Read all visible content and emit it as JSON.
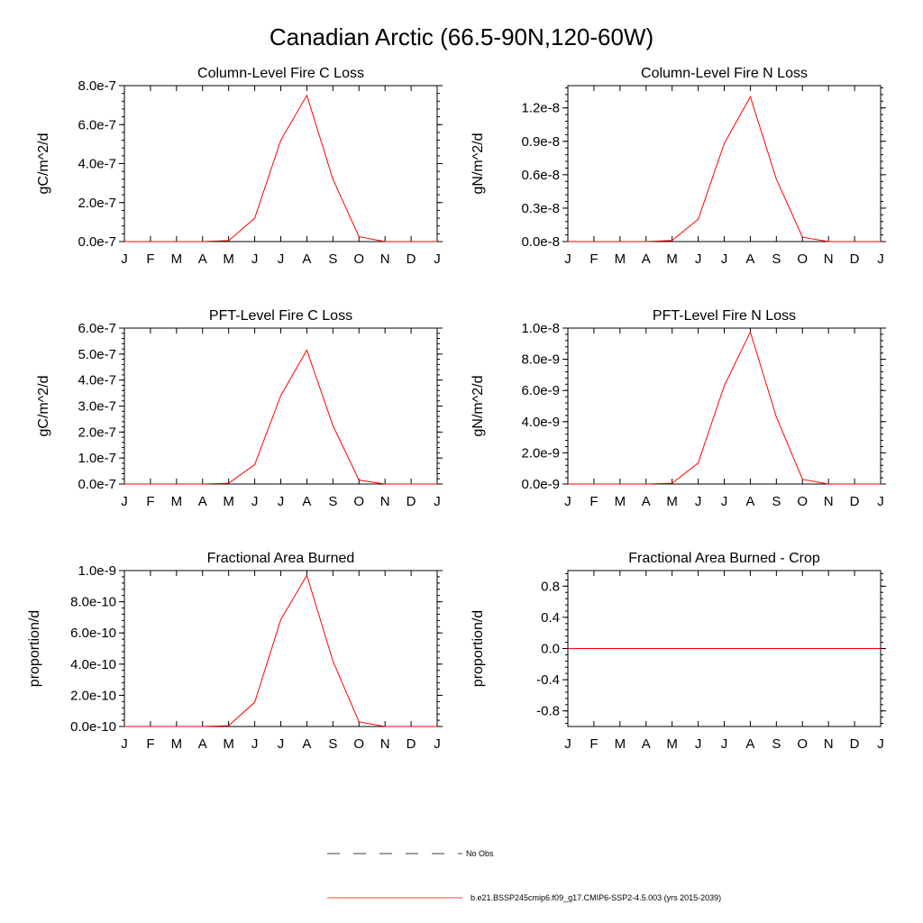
{
  "figure": {
    "title": "Canadian Arctic (66.5-90N,120-60W)"
  },
  "colors": {
    "model_line": "#ff0000",
    "obs_line": "#000000",
    "axis": "#000000"
  },
  "chart_data": [
    {
      "type": "line",
      "title": "Column-Level Fire C Loss",
      "ylabel": "gC/m^2/d",
      "categories": [
        "J",
        "F",
        "M",
        "A",
        "M",
        "J",
        "J",
        "A",
        "S",
        "O",
        "N",
        "D",
        "J"
      ],
      "ylim": [
        0,
        8e-07
      ],
      "yticks": [
        0,
        2e-07,
        4e-07,
        6e-07,
        8e-07
      ],
      "ytick_labels": [
        "0.0e-7",
        "2.0e-7",
        "4.0e-7",
        "6.0e-7",
        "8.0e-7"
      ],
      "series": [
        {
          "values": [
            0,
            0,
            0,
            0,
            5e-09,
            1.2e-07,
            5.2e-07,
            7.5e-07,
            3.2e-07,
            2.5e-08,
            0,
            0,
            0
          ]
        }
      ]
    },
    {
      "type": "line",
      "title": "Column-Level Fire N Loss",
      "ylabel": "gN/m^2/d",
      "categories": [
        "J",
        "F",
        "M",
        "A",
        "M",
        "J",
        "J",
        "A",
        "S",
        "O",
        "N",
        "D",
        "J"
      ],
      "ylim": [
        0,
        1.4e-08
      ],
      "yticks": [
        0,
        3e-09,
        6e-09,
        9e-09,
        1.2e-08
      ],
      "ytick_labels": [
        "0.0e-8",
        "0.3e-8",
        "0.6e-8",
        "0.9e-8",
        "1.2e-8"
      ],
      "series": [
        {
          "values": [
            0,
            0,
            0,
            0,
            1e-10,
            2e-09,
            8.8e-09,
            1.3e-08,
            5.6e-09,
            4e-10,
            0,
            0,
            0
          ]
        }
      ]
    },
    {
      "type": "line",
      "title": "PFT-Level Fire C Loss",
      "ylabel": "gC/m^2/d",
      "categories": [
        "J",
        "F",
        "M",
        "A",
        "M",
        "J",
        "J",
        "A",
        "S",
        "O",
        "N",
        "D",
        "J"
      ],
      "ylim": [
        0,
        6e-07
      ],
      "yticks": [
        0,
        1e-07,
        2e-07,
        3e-07,
        4e-07,
        5e-07,
        6e-07
      ],
      "ytick_labels": [
        "0.0e-7",
        "1.0e-7",
        "2.0e-7",
        "3.0e-7",
        "4.0e-7",
        "5.0e-7",
        "6.0e-7"
      ],
      "series": [
        {
          "values": [
            0,
            0,
            0,
            0,
            3e-09,
            7.5e-08,
            3.4e-07,
            5.15e-07,
            2.25e-07,
            1.5e-08,
            0,
            0,
            0
          ]
        }
      ]
    },
    {
      "type": "line",
      "title": "PFT-Level Fire N Loss",
      "ylabel": "gN/m^2/d",
      "categories": [
        "J",
        "F",
        "M",
        "A",
        "M",
        "J",
        "J",
        "A",
        "S",
        "O",
        "N",
        "D",
        "J"
      ],
      "ylim": [
        0,
        1e-08
      ],
      "yticks": [
        0,
        2e-09,
        4e-09,
        6e-09,
        8e-09,
        1e-08
      ],
      "ytick_labels": [
        "0.0e-9",
        "2.0e-9",
        "4.0e-9",
        "6.0e-9",
        "8.0e-9",
        "1.0e-8"
      ],
      "series": [
        {
          "values": [
            0,
            0,
            0,
            0,
            5e-11,
            1.35e-09,
            6.3e-09,
            9.75e-09,
            4.3e-09,
            3e-10,
            0,
            0,
            0
          ]
        }
      ]
    },
    {
      "type": "line",
      "title": "Fractional Area Burned",
      "ylabel": "proportion/d",
      "categories": [
        "J",
        "F",
        "M",
        "A",
        "M",
        "J",
        "J",
        "A",
        "S",
        "O",
        "N",
        "D",
        "J"
      ],
      "ylim": [
        0,
        1e-09
      ],
      "yticks": [
        0,
        2e-10,
        4e-10,
        6e-10,
        8e-10,
        1e-09
      ],
      "ytick_labels": [
        "0.0e-10",
        "2.0e-10",
        "4.0e-10",
        "6.0e-10",
        "8.0e-10",
        "1.0e-9"
      ],
      "series": [
        {
          "values": [
            0,
            0,
            0,
            0,
            5e-12,
            1.55e-10,
            6.85e-10,
            9.7e-10,
            4.2e-10,
            3e-11,
            0,
            0,
            0
          ]
        }
      ]
    },
    {
      "type": "line",
      "title": "Fractional Area Burned - Crop",
      "ylabel": "proportion/d",
      "categories": [
        "J",
        "F",
        "M",
        "A",
        "M",
        "J",
        "J",
        "A",
        "S",
        "O",
        "N",
        "D",
        "J"
      ],
      "ylim": [
        -1.0,
        1.0
      ],
      "yticks": [
        -0.8,
        -0.4,
        0.0,
        0.4,
        0.8
      ],
      "ytick_labels": [
        "-0.8",
        "-0.4",
        "0.0",
        "0.4",
        "0.8"
      ],
      "series": [
        {
          "values": [
            0,
            0,
            0,
            0,
            0,
            0,
            0,
            0,
            0,
            0,
            0,
            0,
            0
          ]
        }
      ]
    }
  ],
  "legend": {
    "items": [
      {
        "label": "No Obs",
        "style": "dashed"
      },
      {
        "label": "b.e21.BSSP245cmip6.f09_g17.CMIP6-SSP2-4.5.003 (yrs 2015-2039)",
        "style": "solid"
      }
    ]
  }
}
